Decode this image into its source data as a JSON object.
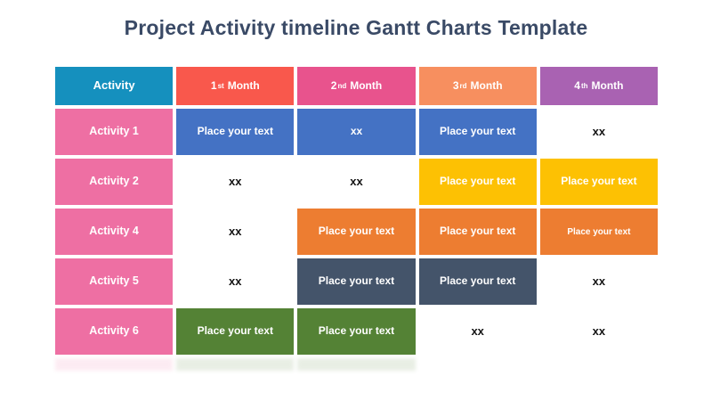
{
  "title": "Project Activity timeline Gantt Charts Template",
  "colors": {
    "title_text": "#3A4A66",
    "header_activity": "#1590BE",
    "header_month1": "#F9584C",
    "header_month2": "#E8538D",
    "header_month3": "#F78F5F",
    "header_month4": "#A962B2",
    "activity_label": "#EE6FA3",
    "bar_blue": "#4472C4",
    "bar_gold": "#FDC103",
    "bar_orange": "#ED7D31",
    "bar_slate": "#44546A",
    "bar_green": "#548235",
    "background": "#FFFFFF"
  },
  "table": {
    "header": {
      "activity": "Activity",
      "months": [
        {
          "num": "1",
          "ord": "st",
          "word": "Month"
        },
        {
          "num": "2",
          "ord": "nd",
          "word": "Month"
        },
        {
          "num": "3",
          "ord": "rd",
          "word": "Month"
        },
        {
          "num": "4",
          "ord": "th",
          "word": "Month"
        }
      ]
    },
    "rows": [
      {
        "label": "Activity 1",
        "cells": [
          {
            "text": "Place your text",
            "variant": "blue"
          },
          {
            "text": "xx",
            "variant": "blue"
          },
          {
            "text": "Place your text",
            "variant": "blue"
          },
          {
            "text": "xx",
            "variant": "plain"
          }
        ]
      },
      {
        "label": "Activity 2",
        "cells": [
          {
            "text": "xx",
            "variant": "plain"
          },
          {
            "text": "xx",
            "variant": "plain"
          },
          {
            "text": "Place your text",
            "variant": "gold"
          },
          {
            "text": "Place your text",
            "variant": "gold"
          }
        ]
      },
      {
        "label": "Activity 4",
        "cells": [
          {
            "text": "xx",
            "variant": "plain"
          },
          {
            "text": "Place your text",
            "variant": "orange"
          },
          {
            "text": "Place your text",
            "variant": "orange"
          },
          {
            "text": "Place your text",
            "variant": "orange-sm"
          }
        ]
      },
      {
        "label": "Activity 5",
        "cells": [
          {
            "text": "xx",
            "variant": "plain"
          },
          {
            "text": "Place your text",
            "variant": "slate"
          },
          {
            "text": "Place your text",
            "variant": "slate"
          },
          {
            "text": "xx",
            "variant": "plain"
          }
        ]
      },
      {
        "label": "Activity 6",
        "cells": [
          {
            "text": "Place your text",
            "variant": "green"
          },
          {
            "text": "Place your text",
            "variant": "green"
          },
          {
            "text": "xx",
            "variant": "plain"
          },
          {
            "text": "xx",
            "variant": "plain"
          }
        ]
      }
    ]
  },
  "chart_data": {
    "type": "table",
    "title": "Project Activity timeline Gantt Charts Template",
    "columns": [
      "Activity",
      "1st Month",
      "2nd Month",
      "3rd Month",
      "4th Month"
    ],
    "rows": [
      [
        "Activity 1",
        "Place your text",
        "xx",
        "Place your text",
        "xx"
      ],
      [
        "Activity 2",
        "xx",
        "xx",
        "Place your text",
        "Place your text"
      ],
      [
        "Activity 4",
        "xx",
        "Place your text",
        "Place your text",
        "Place your text"
      ],
      [
        "Activity 5",
        "xx",
        "Place your text",
        "Place your text",
        "xx"
      ],
      [
        "Activity 6",
        "Place your text",
        "Place your text",
        "xx",
        "xx"
      ]
    ],
    "gantt_bars": [
      {
        "activity": "Activity 1",
        "months": [
          1,
          2,
          3
        ],
        "color": "#4472C4"
      },
      {
        "activity": "Activity 2",
        "months": [
          3,
          4
        ],
        "color": "#FDC103"
      },
      {
        "activity": "Activity 4",
        "months": [
          2,
          3,
          4
        ],
        "color": "#ED7D31"
      },
      {
        "activity": "Activity 5",
        "months": [
          2,
          3
        ],
        "color": "#44546A"
      },
      {
        "activity": "Activity 6",
        "months": [
          1,
          2
        ],
        "color": "#548235"
      }
    ],
    "legend_position": "none",
    "grid": "white-gaps-between-cells"
  }
}
